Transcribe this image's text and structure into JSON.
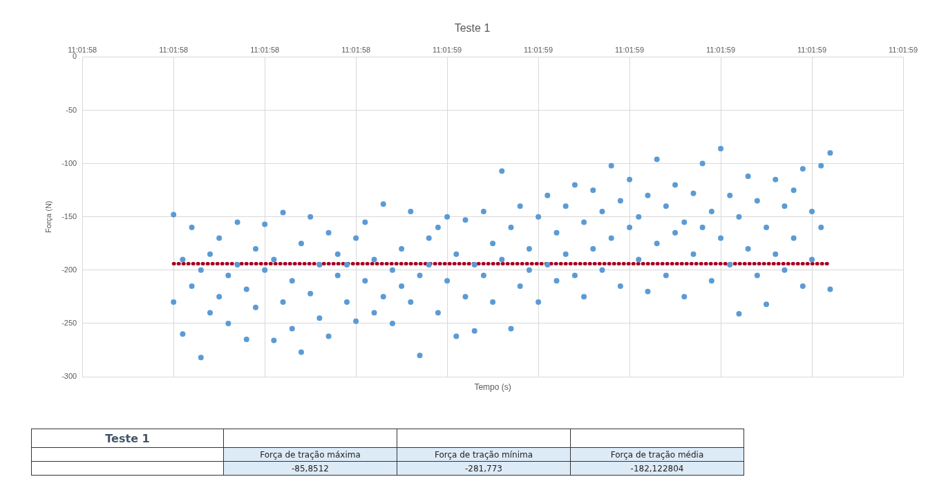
{
  "chart_data": {
    "type": "scatter",
    "title": "Teste 1",
    "xlabel": "Tempo (s)",
    "ylabel": "Força (N)",
    "xlim": [
      11.03276,
      11.03312
    ],
    "xticks": [
      {
        "value": 11.03276,
        "label": "11:01:58"
      },
      {
        "value": 11.0328,
        "label": "11:01:58"
      },
      {
        "value": 11.03284,
        "label": "11:01:58"
      },
      {
        "value": 11.03288,
        "label": "11:01:58"
      },
      {
        "value": 11.03292,
        "label": "11:01:59"
      },
      {
        "value": 11.03296,
        "label": "11:01:59"
      },
      {
        "value": 11.033,
        "label": "11:01:59"
      },
      {
        "value": 11.03304,
        "label": "11:01:59"
      },
      {
        "value": 11.03308,
        "label": "11:01:59"
      },
      {
        "value": 11.03312,
        "label": "11:01:59"
      }
    ],
    "ylim": [
      -300,
      0
    ],
    "yticks": [
      0,
      -50,
      -100,
      -150,
      -200,
      -250,
      -300
    ],
    "grid": true,
    "legend": false,
    "marker": "circle",
    "series": [
      {
        "color": "#5b9bd5",
        "x": [
          11.0328,
          11.0328,
          11.032804,
          11.032804,
          11.032808,
          11.032808,
          11.032812,
          11.032812,
          11.032816,
          11.032816,
          11.03282,
          11.03282,
          11.032824,
          11.032824,
          11.032828,
          11.032828,
          11.032832,
          11.032832,
          11.032836,
          11.032836,
          11.03284,
          11.03284,
          11.032844,
          11.032844,
          11.032848,
          11.032848,
          11.032852,
          11.032852,
          11.032856,
          11.032856,
          11.03286,
          11.03286,
          11.032864,
          11.032864,
          11.032868,
          11.032868,
          11.032872,
          11.032872,
          11.032876,
          11.032876,
          11.03288,
          11.03288,
          11.032884,
          11.032884,
          11.032888,
          11.032888,
          11.032892,
          11.032892,
          11.032896,
          11.032896,
          11.0329,
          11.0329,
          11.032904,
          11.032904,
          11.032908,
          11.032908,
          11.032912,
          11.032912,
          11.032916,
          11.032916,
          11.03292,
          11.03292,
          11.032924,
          11.032924,
          11.032928,
          11.032928,
          11.032932,
          11.032932,
          11.032936,
          11.032936,
          11.03294,
          11.03294,
          11.032944,
          11.032944,
          11.032948,
          11.032948,
          11.032952,
          11.032952,
          11.032956,
          11.032956,
          11.03296,
          11.03296,
          11.032964,
          11.032964,
          11.032968,
          11.032968,
          11.032972,
          11.032972,
          11.032976,
          11.032976,
          11.03298,
          11.03298,
          11.032984,
          11.032984,
          11.032988,
          11.032988,
          11.032992,
          11.032992,
          11.032996,
          11.032996,
          11.033,
          11.033,
          11.033004,
          11.033004,
          11.033008,
          11.033008,
          11.033012,
          11.033012,
          11.033016,
          11.033016,
          11.03302,
          11.03302,
          11.033024,
          11.033024,
          11.033028,
          11.033028,
          11.033032,
          11.033032,
          11.033036,
          11.033036,
          11.03304,
          11.03304,
          11.033044,
          11.033044,
          11.033048,
          11.033048,
          11.033052,
          11.033052,
          11.033056,
          11.033056,
          11.03306,
          11.03306,
          11.033064,
          11.033064,
          11.033068,
          11.033068,
          11.033072,
          11.033072,
          11.033076,
          11.033076,
          11.03308,
          11.03308,
          11.033084,
          11.033084,
          11.033088,
          11.033088
        ],
        "values": [
          -148,
          -230,
          -190,
          -260,
          -160,
          -215,
          -282,
          -200,
          -185,
          -240,
          -170,
          -225,
          -205,
          -250,
          -155,
          -195,
          -265,
          -218,
          -180,
          -235,
          -157,
          -200,
          -190,
          -266,
          -146,
          -230,
          -210,
          -255,
          -175,
          -277,
          -150,
          -222,
          -195,
          -245,
          -165,
          -262,
          -205,
          -185,
          -230,
          -195,
          -170,
          -248,
          -155,
          -210,
          -190,
          -240,
          -138,
          -225,
          -200,
          -250,
          -180,
          -215,
          -145,
          -230,
          -205,
          -280,
          -170,
          -195,
          -160,
          -240,
          -150,
          -210,
          -185,
          -262,
          -153,
          -225,
          -195,
          -257,
          -145,
          -205,
          -175,
          -230,
          -107,
          -190,
          -160,
          -255,
          -140,
          -215,
          -180,
          -200,
          -150,
          -230,
          -130,
          -195,
          -165,
          -210,
          -140,
          -185,
          -120,
          -205,
          -155,
          -225,
          -125,
          -180,
          -145,
          -200,
          -102,
          -170,
          -135,
          -215,
          -115,
          -160,
          -150,
          -190,
          -130,
          -220,
          -96,
          -175,
          -140,
          -205,
          -120,
          -165,
          -155,
          -225,
          -128,
          -185,
          -100,
          -160,
          -145,
          -210,
          -86,
          -170,
          -130,
          -195,
          -150,
          -241,
          -112,
          -180,
          -135,
          -205,
          -160,
          -232,
          -115,
          -185,
          -140,
          -200,
          -125,
          -170,
          -105,
          -215,
          -145,
          -190,
          -102,
          -160,
          -90,
          -218
        ]
      },
      {
        "type": "line",
        "color": "#a50021",
        "line_style": "dotted",
        "marker": "none",
        "x": [
          11.0328,
          11.033088
        ],
        "values": [
          -194,
          -194
        ]
      }
    ],
    "annotations": [
      "Teste 1",
      "Força de tração máxima",
      "Força de tração mínima",
      "Força de tração média",
      "-85,8512",
      "-281,773",
      "-182,122804"
    ]
  }
}
